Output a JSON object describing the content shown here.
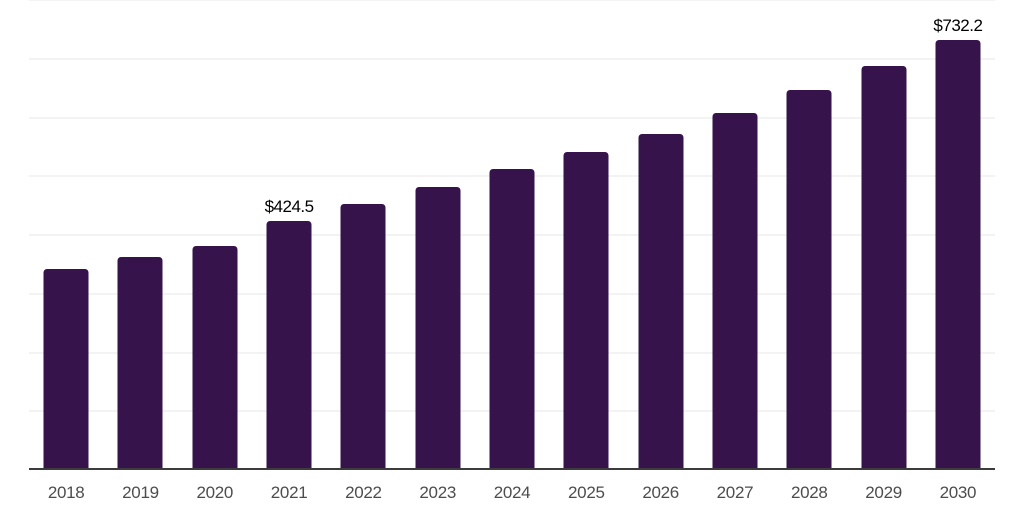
{
  "chart_data": {
    "type": "bar",
    "title": "",
    "xlabel": "",
    "ylabel": "",
    "categories": [
      "2018",
      "2019",
      "2020",
      "2021",
      "2022",
      "2023",
      "2024",
      "2025",
      "2026",
      "2027",
      "2028",
      "2029",
      "2030"
    ],
    "values": [
      342,
      363,
      381,
      424.5,
      453,
      482,
      512,
      541,
      572,
      608,
      647,
      688,
      732.2
    ],
    "data_labels": {
      "2021": "$424.5",
      "2030": "$732.2"
    },
    "ylim": [
      0,
      800
    ],
    "gridline_step": 100,
    "grid": "horizontal",
    "legend": "none"
  },
  "colors": {
    "bar": "#36134A",
    "gridline": "#f3f3f3",
    "axis_line": "#3c3c3c",
    "tick_label": "#4d4d4d",
    "value_label": "#000000",
    "background": "#ffffff"
  }
}
